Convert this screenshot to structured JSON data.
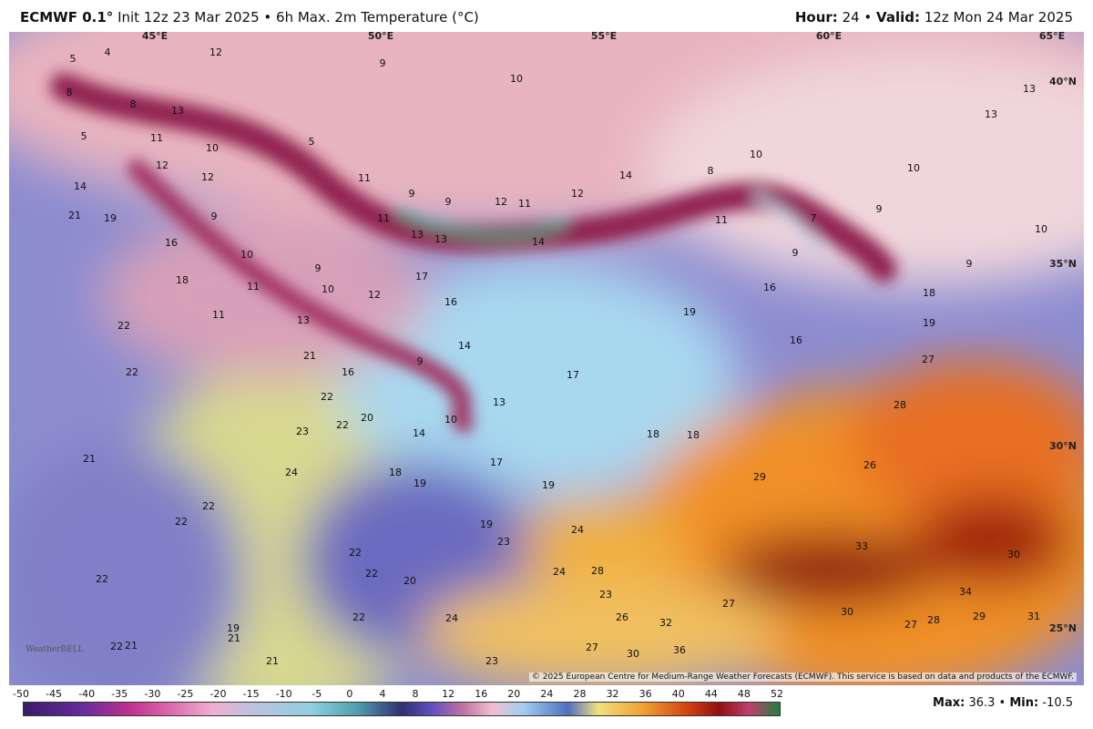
{
  "header": {
    "model": "ECMWF 0.1°",
    "title": "Init 12z 23 Mar 2025 • 6h Max. 2m Temperature (°C)",
    "hour_label": "Hour:",
    "hour": "24 •",
    "valid_label": "Valid:",
    "valid": "12z Mon 24 Mar 2025"
  },
  "map": {
    "longitudes": [
      "45°E",
      "50°E",
      "55°E",
      "60°E",
      "65°E"
    ],
    "latitudes": [
      "40°N",
      "35°N",
      "30°N",
      "25°N"
    ],
    "labels": [
      5,
      4,
      12,
      9,
      10,
      13,
      8,
      8,
      13,
      13,
      5,
      11,
      10,
      5,
      12,
      12,
      11,
      10,
      10,
      8,
      14,
      14,
      9,
      9,
      12,
      11,
      12,
      21,
      19,
      9,
      11,
      11,
      7,
      9,
      10,
      16,
      10,
      13,
      13,
      14,
      9,
      9,
      9,
      18,
      11,
      10,
      12,
      17,
      16,
      18,
      16,
      11,
      13,
      19,
      19,
      22,
      14,
      16,
      21,
      27,
      9,
      16,
      22,
      17,
      22,
      13,
      28,
      20,
      10,
      23,
      22,
      14,
      18,
      18,
      21,
      26,
      18,
      17,
      29,
      24,
      19,
      19,
      22,
      22,
      24,
      19,
      23,
      33,
      30,
      22,
      24,
      28,
      22,
      20,
      22,
      23,
      34,
      27,
      30,
      22,
      24,
      26,
      32,
      27,
      28,
      29,
      31,
      19,
      21,
      22,
      21,
      27,
      30,
      36,
      21,
      23
    ],
    "watermark": "WeatherBELL",
    "copyright": "© 2025 European Centre for Medium-Range Weather Forecasts (ECMWF). This service is based on data and products of the ECMWF."
  },
  "colorbar": {
    "ticks": [
      -50,
      -45,
      -40,
      -35,
      -30,
      -25,
      -20,
      -15,
      -10,
      -5,
      0,
      4,
      8,
      12,
      16,
      20,
      24,
      28,
      32,
      36,
      40,
      44,
      48,
      52
    ]
  },
  "stats": {
    "max_label": "Max:",
    "max": "36.3 •",
    "min_label": "Min:",
    "min": "-10.5"
  }
}
